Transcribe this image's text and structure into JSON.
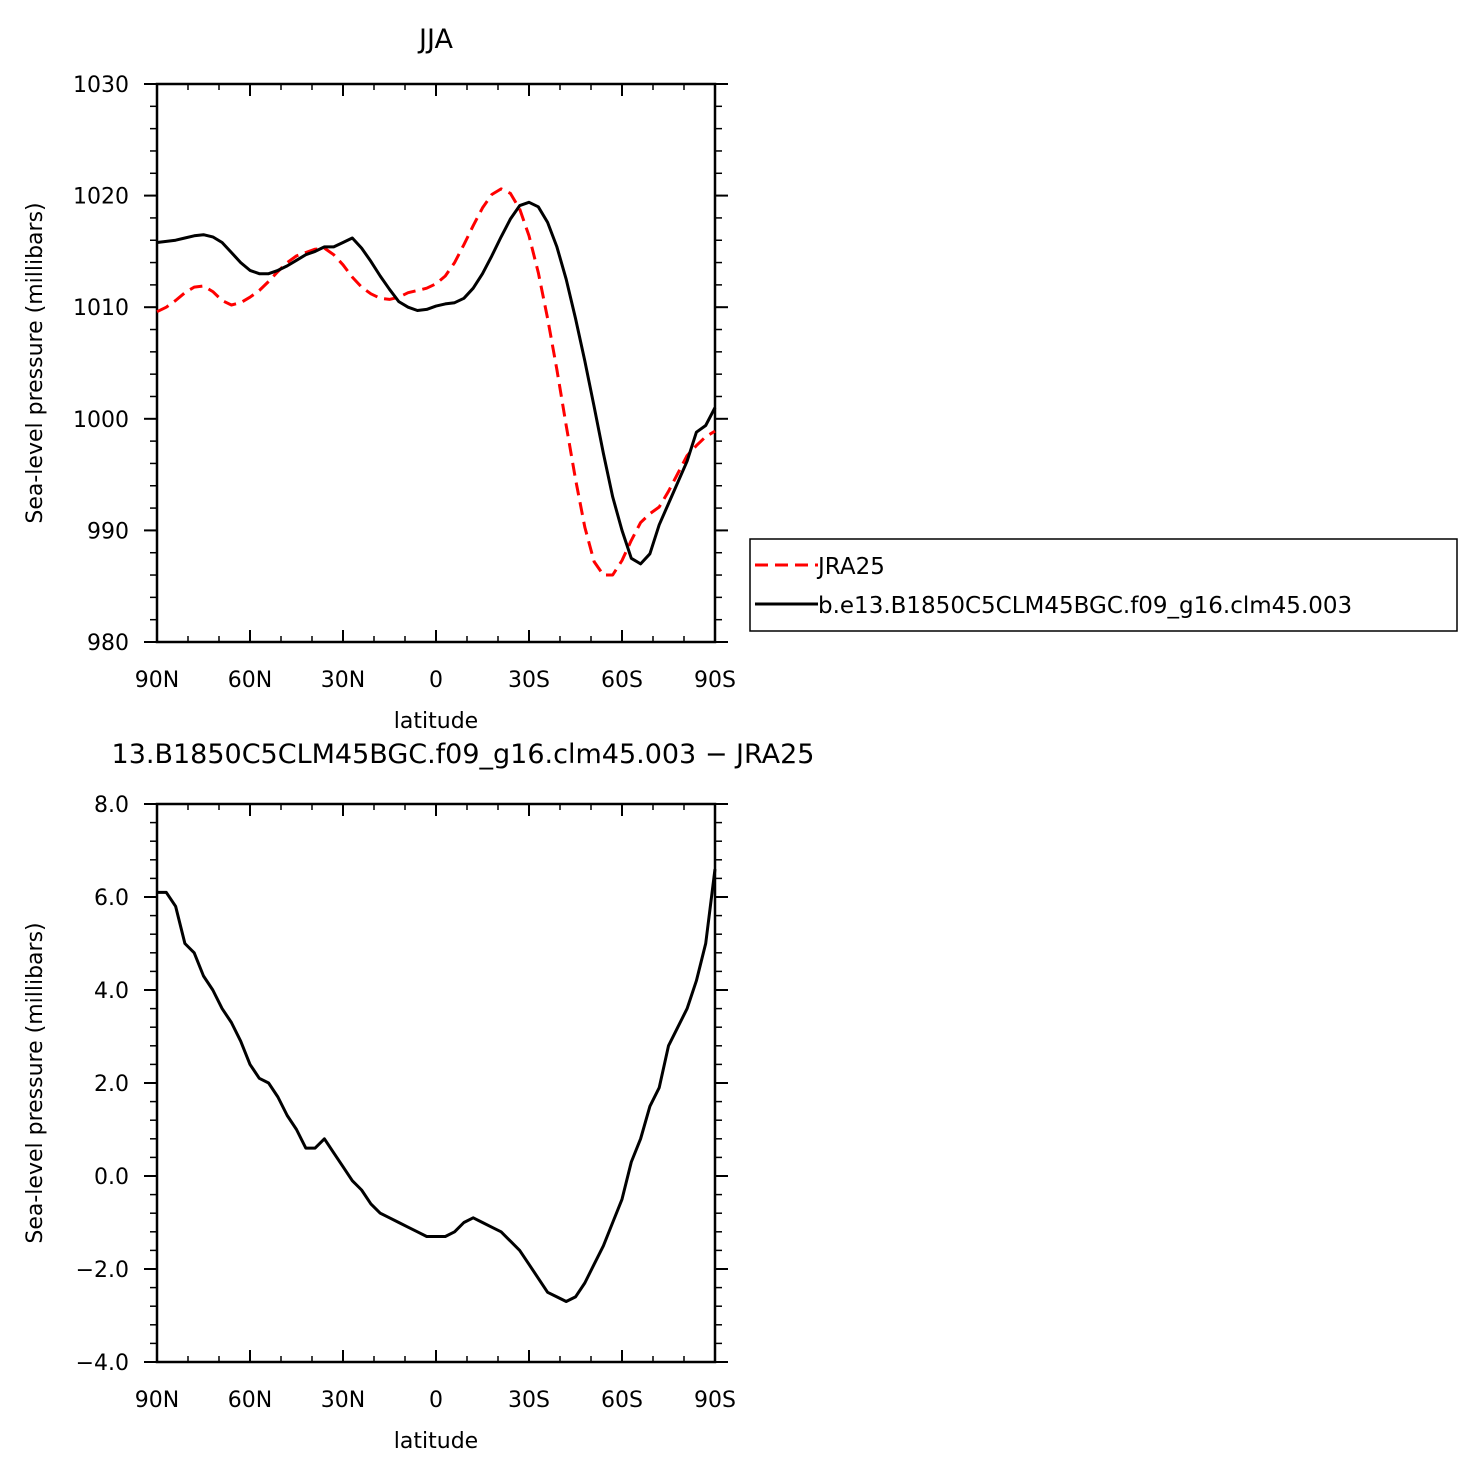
{
  "chart_data": [
    {
      "type": "line",
      "title": "JJA",
      "xlabel": "latitude",
      "ylabel": "Sea-level pressure (millibars)",
      "xlim": [
        90,
        -90
      ],
      "ylim": [
        980,
        1030
      ],
      "x_ticks": [
        90,
        60,
        30,
        0,
        -30,
        -60,
        -90
      ],
      "x_tick_labels": [
        "90N",
        "60N",
        "30N",
        "0",
        "30S",
        "60S",
        "90S"
      ],
      "y_ticks": [
        980,
        990,
        1000,
        1010,
        1020,
        1030
      ],
      "y_tick_labels": [
        "980",
        "990",
        "1000",
        "1010",
        "1020",
        "1030"
      ],
      "legend_position": "right",
      "series": [
        {
          "name": "JRA25",
          "color": "#ff0000",
          "dash": "dashed",
          "x": [
            90,
            87,
            84,
            81,
            78,
            75,
            72,
            69,
            66,
            63,
            60,
            57,
            54,
            51,
            48,
            45,
            42,
            39,
            36,
            33,
            30,
            27,
            24,
            21,
            18,
            15,
            12,
            9,
            6,
            3,
            0,
            -3,
            -6,
            -9,
            -12,
            -15,
            -18,
            -21,
            -24,
            -27,
            -30,
            -33,
            -36,
            -39,
            -42,
            -45,
            -48,
            -51,
            -54,
            -57,
            -60,
            -63,
            -66,
            -69,
            -72,
            -75,
            -78,
            -81,
            -84,
            -87,
            -90
          ],
          "y": [
            1009.6,
            1010.0,
            1010.6,
            1011.3,
            1011.8,
            1011.9,
            1011.4,
            1010.6,
            1010.2,
            1010.4,
            1010.9,
            1011.5,
            1012.3,
            1013.2,
            1014.0,
            1014.6,
            1014.9,
            1015.2,
            1015.3,
            1014.7,
            1013.8,
            1012.7,
            1011.8,
            1011.2,
            1010.8,
            1010.7,
            1010.9,
            1011.3,
            1011.5,
            1011.7,
            1012.1,
            1012.8,
            1014.0,
            1015.6,
            1017.3,
            1018.9,
            1020.1,
            1020.6,
            1020.2,
            1018.8,
            1016.4,
            1013.1,
            1009.0,
            1004.4,
            999.4,
            994.6,
            990.3,
            987.2,
            986.0,
            986.0,
            987.3,
            989.1,
            990.7,
            991.5,
            992.1,
            993.5,
            995.1,
            996.7,
            997.6,
            998.4,
            998.9
          ]
        },
        {
          "name": "b.e13.B1850C5CLM45BGC.f09_g16.clm45.003",
          "color": "#000000",
          "dash": "solid",
          "x": [
            90,
            87,
            84,
            81,
            78,
            75,
            72,
            69,
            66,
            63,
            60,
            57,
            54,
            51,
            48,
            45,
            42,
            39,
            36,
            33,
            30,
            27,
            24,
            21,
            18,
            15,
            12,
            9,
            6,
            3,
            0,
            -3,
            -6,
            -9,
            -12,
            -15,
            -18,
            -21,
            -24,
            -27,
            -30,
            -33,
            -36,
            -39,
            -42,
            -45,
            -48,
            -51,
            -54,
            -57,
            -60,
            -63,
            -66,
            -69,
            -72,
            -75,
            -78,
            -81,
            -84,
            -87,
            -90
          ],
          "y": [
            1015.8,
            1015.9,
            1016.0,
            1016.2,
            1016.4,
            1016.5,
            1016.3,
            1015.8,
            1014.9,
            1014.0,
            1013.3,
            1013.0,
            1013.0,
            1013.3,
            1013.7,
            1014.2,
            1014.7,
            1015.0,
            1015.4,
            1015.4,
            1015.8,
            1016.2,
            1015.3,
            1014.1,
            1012.8,
            1011.6,
            1010.5,
            1010.0,
            1009.7,
            1009.8,
            1010.1,
            1010.3,
            1010.4,
            1010.8,
            1011.7,
            1013.0,
            1014.6,
            1016.3,
            1017.9,
            1019.1,
            1019.4,
            1019.0,
            1017.6,
            1015.4,
            1012.5,
            1009.0,
            1005.2,
            1001.1,
            996.9,
            993.0,
            990.0,
            987.5,
            987.0,
            987.9,
            990.5,
            992.4,
            994.3,
            996.2,
            998.8,
            999.4,
            1001.0
          ]
        }
      ]
    },
    {
      "type": "line",
      "title": "13.B1850C5CLM45BGC.f09_g16.clm45.003 − JRA25",
      "xlabel": "latitude",
      "ylabel": "Sea-level pressure (millibars)",
      "xlim": [
        90,
        -90
      ],
      "ylim": [
        -4,
        8
      ],
      "x_ticks": [
        90,
        60,
        30,
        0,
        -30,
        -60,
        -90
      ],
      "x_tick_labels": [
        "90N",
        "60N",
        "30N",
        "0",
        "30S",
        "60S",
        "90S"
      ],
      "y_ticks": [
        -4,
        -2,
        0,
        2,
        4,
        6,
        8
      ],
      "y_tick_labels": [
        "−4.0",
        "−2.0",
        "0.0",
        "2.0",
        "4.0",
        "6.0",
        "8.0"
      ],
      "series": [
        {
          "color": "#000000",
          "dash": "solid",
          "x": [
            90,
            87,
            84,
            81,
            78,
            75,
            72,
            69,
            66,
            63,
            60,
            57,
            54,
            51,
            48,
            45,
            42,
            39,
            36,
            33,
            30,
            27,
            24,
            21,
            18,
            15,
            12,
            9,
            6,
            3,
            0,
            -3,
            -6,
            -9,
            -12,
            -15,
            -18,
            -21,
            -24,
            -27,
            -30,
            -33,
            -36,
            -39,
            -42,
            -45,
            -48,
            -51,
            -54,
            -57,
            -60,
            -63,
            -66,
            -69,
            -72,
            -75,
            -78,
            -81,
            -84,
            -87,
            -90
          ],
          "y": [
            6.1,
            6.1,
            5.8,
            5.0,
            4.8,
            4.3,
            4.0,
            3.6,
            3.3,
            2.9,
            2.4,
            2.1,
            2.0,
            1.7,
            1.3,
            1.0,
            0.6,
            0.6,
            0.8,
            0.5,
            0.2,
            -0.1,
            -0.3,
            -0.6,
            -0.8,
            -0.9,
            -1.0,
            -1.1,
            -1.2,
            -1.3,
            -1.3,
            -1.3,
            -1.2,
            -1.0,
            -0.9,
            -1.0,
            -1.1,
            -1.2,
            -1.4,
            -1.6,
            -1.9,
            -2.2,
            -2.5,
            -2.6,
            -2.7,
            -2.6,
            -2.3,
            -1.9,
            -1.5,
            -1.0,
            -0.5,
            0.3,
            0.8,
            1.5,
            1.9,
            2.8,
            3.2,
            3.6,
            4.2,
            5.0,
            6.6
          ]
        }
      ]
    }
  ]
}
